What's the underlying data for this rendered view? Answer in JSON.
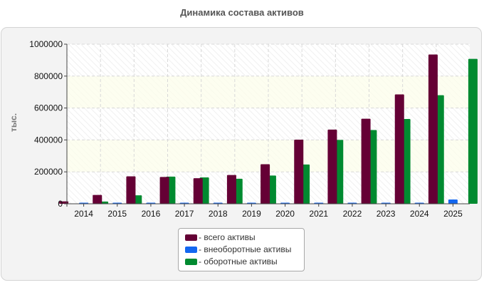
{
  "chart_data": {
    "type": "bar",
    "title": "Динамика состава активов",
    "ylabel": "тыс.",
    "xlabel": "",
    "categories": [
      "2014",
      "2015",
      "2016",
      "2017",
      "2018",
      "2019",
      "2020",
      "2021",
      "2022",
      "2023",
      "2024",
      "2025"
    ],
    "ylim": [
      0,
      1000000
    ],
    "yticks": [
      0,
      200000,
      400000,
      600000,
      800000,
      1000000
    ],
    "grid": true,
    "legend_position": "bottom",
    "series": [
      {
        "name": "- всего активы",
        "color": "#650035",
        "values": [
          15000,
          55000,
          172000,
          168000,
          160000,
          180000,
          248000,
          402000,
          465000,
          533000,
          685000,
          935000
        ]
      },
      {
        "name": "- внеоборотные активы",
        "color": "#1367f0",
        "values": [
          2000,
          2000,
          3000,
          3000,
          3000,
          3000,
          3000,
          3000,
          3000,
          3000,
          3000,
          27000
        ]
      },
      {
        "name": "- оборотные активы",
        "color": "#008a30",
        "values": [
          14000,
          53000,
          170000,
          165000,
          157000,
          177000,
          246000,
          400000,
          462000,
          531000,
          680000,
          908000
        ]
      }
    ]
  }
}
